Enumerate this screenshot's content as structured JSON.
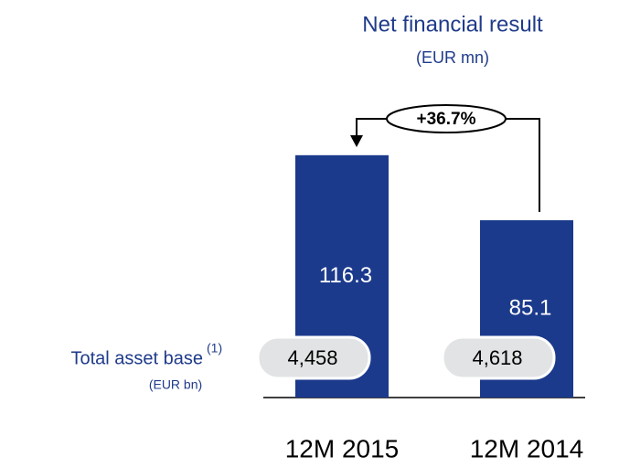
{
  "chart_data": {
    "type": "bar",
    "title": "Net financial result",
    "subtitle": "(EUR mn)",
    "categories": [
      "12M 2015",
      "12M 2014"
    ],
    "values": [
      116.3,
      85.1
    ],
    "color": "#1b3a8c",
    "annotation": "+36.7%",
    "asset_base": {
      "label": "Total asset base",
      "superscript": "(1)",
      "unit": "(EUR bn)",
      "values": [
        4458,
        4618
      ],
      "value_labels": [
        "4,458",
        "4,618"
      ]
    }
  }
}
